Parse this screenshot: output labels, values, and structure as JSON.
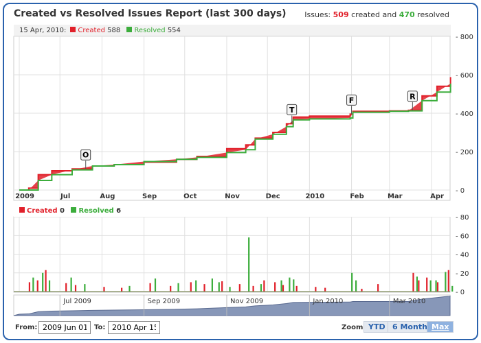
{
  "title": "Created vs Resolved Issues Report (last 300 days)",
  "summary": {
    "prefix": "Issues:",
    "created": "509",
    "mid": "created and",
    "resolved": "470",
    "suffix": "resolved"
  },
  "top_legend": {
    "date": "15 Apr, 2010:",
    "created_label": "Created",
    "created_value": "588",
    "resolved_label": "Resolved",
    "resolved_value": "554"
  },
  "bottom_legend": {
    "created_label": "Created",
    "created_value": "0",
    "resolved_label": "Resolved",
    "resolved_value": "6"
  },
  "colors": {
    "created": "#e1202a",
    "resolved": "#3cad3c",
    "navigator": "#8797b8",
    "frame": "#2a62ad"
  },
  "range": {
    "from_label": "From:",
    "from": "2009 Jun 01",
    "to_label": "To:",
    "to": "2010 Apr 15"
  },
  "zoom": {
    "label": "Zoom:",
    "buttons": [
      "YTD",
      "6 Months",
      "Max"
    ],
    "selected": "Max"
  },
  "chart_data": [
    {
      "type": "area",
      "x_ticks": [
        "2009",
        "Jul",
        "Aug",
        "Sep",
        "Oct",
        "Nov",
        "Dec",
        "2010",
        "Feb",
        "Mar",
        "Apr"
      ],
      "y_ticks": [
        "0",
        "200",
        "400",
        "600",
        "800"
      ],
      "ylim": [
        0,
        800
      ],
      "grid": true,
      "series": [
        {
          "name": "Created",
          "x": [
            "2009-06-01",
            "2009-06-08",
            "2009-06-15",
            "2009-06-25",
            "2009-07-10",
            "2009-07-25",
            "2009-08-10",
            "2009-09-01",
            "2009-09-25",
            "2009-10-10",
            "2009-11-01",
            "2009-11-15",
            "2009-11-22",
            "2009-12-05",
            "2009-12-15",
            "2009-12-20",
            "2010-01-01",
            "2010-01-31",
            "2010-02-02",
            "2010-03-01",
            "2010-03-15",
            "2010-03-25",
            "2010-04-05",
            "2010-04-15"
          ],
          "y": [
            0,
            10,
            80,
            100,
            110,
            125,
            132,
            145,
            160,
            175,
            215,
            235,
            270,
            300,
            345,
            380,
            385,
            395,
            410,
            412,
            415,
            490,
            540,
            588
          ]
        },
        {
          "name": "Resolved",
          "x": [
            "2009-06-01",
            "2009-06-08",
            "2009-06-15",
            "2009-06-25",
            "2009-07-10",
            "2009-07-25",
            "2009-08-10",
            "2009-09-01",
            "2009-09-25",
            "2009-10-10",
            "2009-11-01",
            "2009-11-15",
            "2009-11-22",
            "2009-12-05",
            "2009-12-15",
            "2009-12-20",
            "2010-01-01",
            "2010-01-31",
            "2010-02-02",
            "2010-03-01",
            "2010-03-15",
            "2010-03-25",
            "2010-04-05",
            "2010-04-15"
          ],
          "y": [
            0,
            0,
            50,
            80,
            105,
            125,
            132,
            148,
            160,
            170,
            195,
            210,
            265,
            290,
            330,
            365,
            370,
            375,
            405,
            410,
            412,
            465,
            510,
            554
          ]
        }
      ],
      "flags": [
        {
          "label": "O",
          "x": "2009-07-20"
        },
        {
          "label": "T",
          "x": "2009-12-19"
        },
        {
          "label": "F",
          "x": "2010-02-01"
        },
        {
          "label": "R",
          "x": "2010-03-18"
        }
      ]
    },
    {
      "type": "bar",
      "y_ticks": [
        "0",
        "20",
        "40",
        "60",
        "80"
      ],
      "ylim": [
        0,
        80
      ],
      "series": [
        {
          "name": "Created",
          "x": [
            "2009-06-08",
            "2009-06-14",
            "2009-06-20",
            "2009-07-05",
            "2009-07-12",
            "2009-08-02",
            "2009-08-15",
            "2009-09-05",
            "2009-09-20",
            "2009-10-05",
            "2009-10-15",
            "2009-10-28",
            "2009-11-10",
            "2009-11-20",
            "2009-11-28",
            "2009-12-06",
            "2009-12-12",
            "2009-12-22",
            "2010-01-05",
            "2010-01-12",
            "2010-02-08",
            "2010-02-20",
            "2010-03-18",
            "2010-03-22",
            "2010-03-28",
            "2010-04-05",
            "2010-04-13"
          ],
          "y": [
            10,
            12,
            23,
            9,
            7,
            5,
            4,
            9,
            6,
            10,
            8,
            11,
            8,
            6,
            12,
            10,
            7,
            6,
            5,
            4,
            3,
            8,
            20,
            12,
            15,
            10,
            23
          ]
        },
        {
          "name": "Resolved",
          "x": [
            "2009-06-10",
            "2009-06-17",
            "2009-06-22",
            "2009-07-08",
            "2009-07-18",
            "2009-08-20",
            "2009-09-08",
            "2009-09-25",
            "2009-10-08",
            "2009-10-20",
            "2009-10-25",
            "2009-11-02",
            "2009-11-16",
            "2009-11-25",
            "2009-12-10",
            "2009-12-16",
            "2009-12-19",
            "2010-01-31",
            "2010-02-03",
            "2010-03-20",
            "2010-03-30",
            "2010-04-03",
            "2010-04-10",
            "2010-04-15"
          ],
          "y": [
            15,
            20,
            12,
            15,
            8,
            6,
            14,
            9,
            12,
            14,
            10,
            5,
            58,
            8,
            12,
            15,
            13,
            20,
            12,
            16,
            12,
            12,
            21,
            6
          ]
        }
      ]
    },
    {
      "type": "area",
      "name": "navigator",
      "x_ticks": [
        "Jul 2009",
        "Sep 2009",
        "Nov 2009",
        "Jan 2010",
        "Mar 2010"
      ]
    }
  ]
}
